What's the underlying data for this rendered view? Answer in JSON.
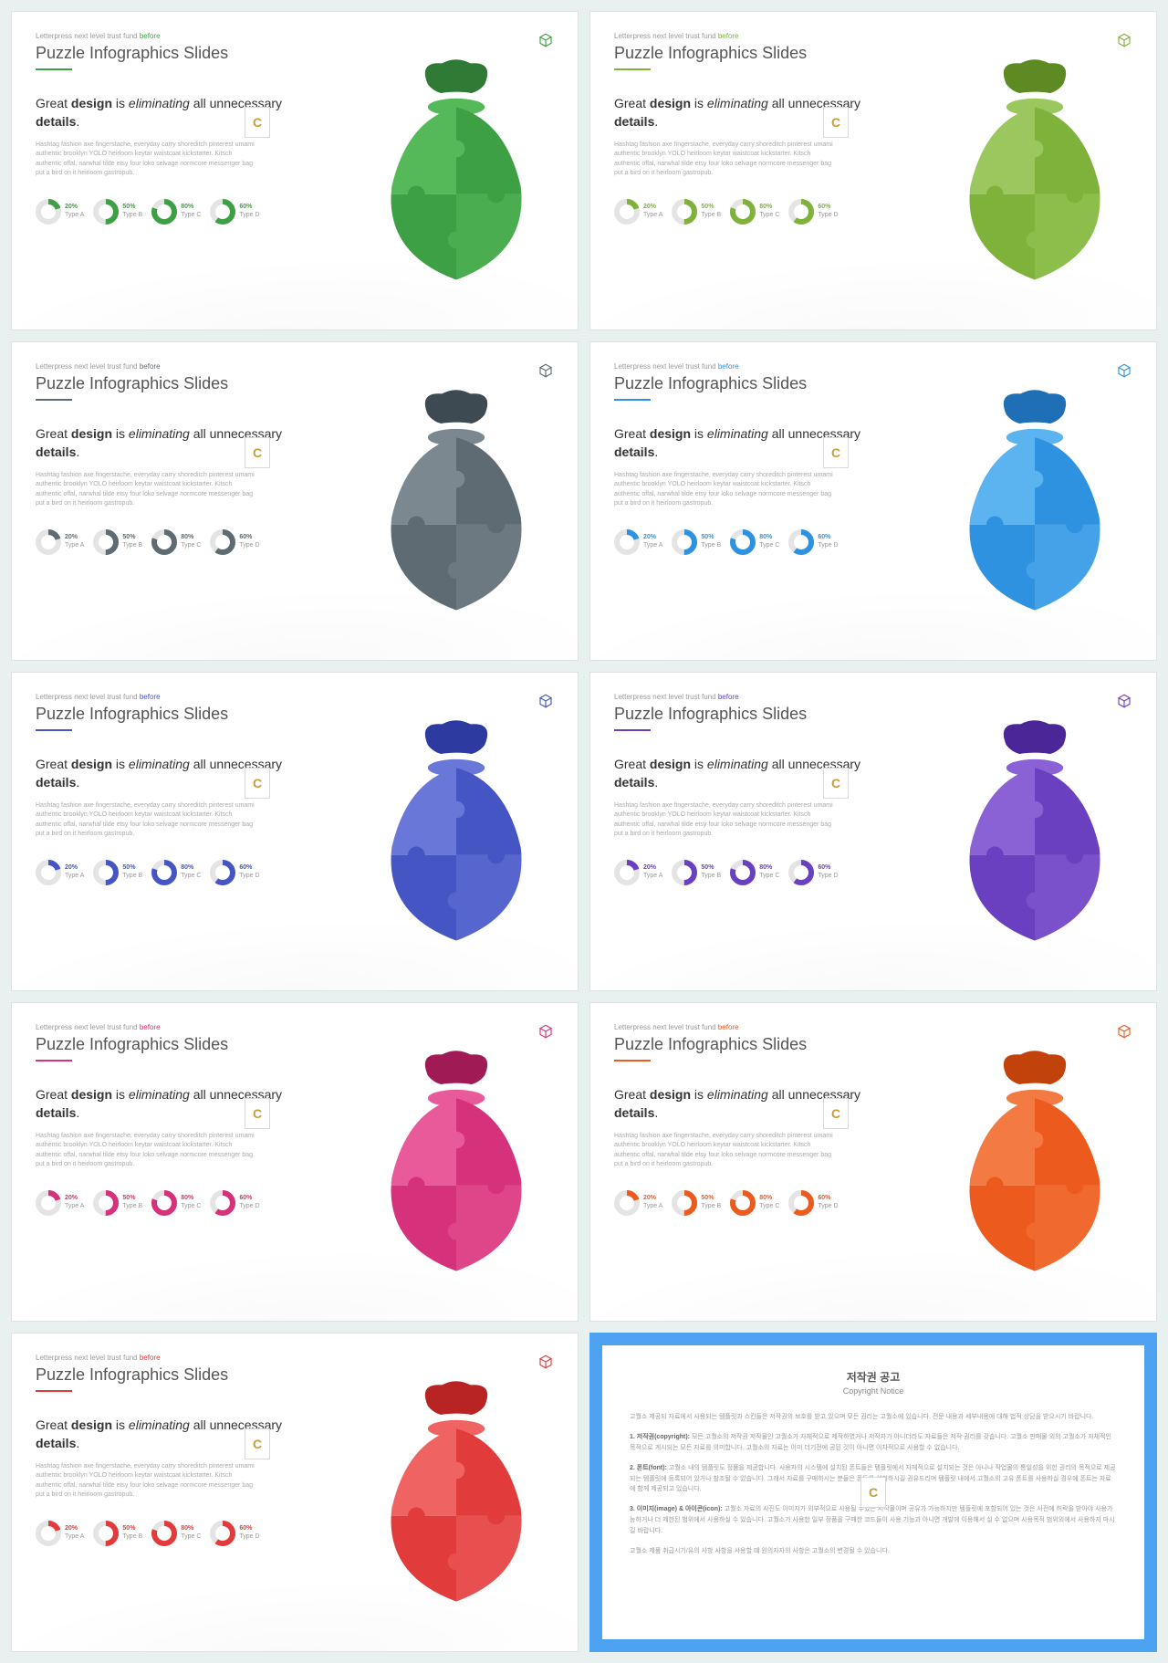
{
  "common": {
    "crumb_pre": "Letterpress next level trust fund ",
    "crumb_accent": "before",
    "title": "Puzzle Infographics Slides",
    "headline_parts": [
      "Great ",
      "design",
      " is ",
      "eliminating",
      " all unnecessary ",
      "details",
      "."
    ],
    "paragraph": "Hashtag fashion axe fingerstache, everyday carry shoreditch pinterest umami authentic brooklyn YOLO heirloom keytar waistcoat kickstarter. Kitsch authentic offal, narwhal tilde etsy four loko selvage normcore messenger bag put a bird on it heirloom gastropub.",
    "donuts": [
      {
        "pct": 20,
        "label": "Type A"
      },
      {
        "pct": 50,
        "label": "Type B"
      },
      {
        "pct": 80,
        "label": "Type C"
      },
      {
        "pct": 60,
        "label": "Type D"
      }
    ],
    "badge_letter": "C",
    "ring_bg": "#e4e4e4"
  },
  "slides": [
    {
      "accent": "#3ea044",
      "bag": {
        "top": "#2f7a34",
        "q1": "#55b95a",
        "q2": "#3ea044",
        "q3": "#3ea044",
        "q4": "#4aad50"
      }
    },
    {
      "accent": "#7fb23a",
      "bag": {
        "top": "#5d8a22",
        "q1": "#9bc85e",
        "q2": "#7fb23a",
        "q3": "#7fb23a",
        "q4": "#8dbe4c"
      }
    },
    {
      "accent": "#5e6b73",
      "bag": {
        "top": "#3e4a52",
        "q1": "#7b8890",
        "q2": "#5e6b73",
        "q3": "#5e6b73",
        "q4": "#6c7981"
      }
    },
    {
      "accent": "#2f92e0",
      "bag": {
        "top": "#1e6fb5",
        "q1": "#5bb3f0",
        "q2": "#2f92e0",
        "q3": "#2f92e0",
        "q4": "#45a2e8"
      }
    },
    {
      "accent": "#4556c4",
      "bag": {
        "top": "#2d3ba0",
        "q1": "#6877d8",
        "q2": "#4556c4",
        "q3": "#4556c4",
        "q4": "#5666ce"
      }
    },
    {
      "accent": "#6a3fc0",
      "bag": {
        "top": "#4a2696",
        "q1": "#8a62d6",
        "q2": "#6a3fc0",
        "q3": "#6a3fc0",
        "q4": "#7a50cb"
      }
    },
    {
      "accent": "#d6317b",
      "bag": {
        "top": "#a01b56",
        "q1": "#e85a9a",
        "q2": "#d6317b",
        "q3": "#d6317b",
        "q4": "#df468a"
      }
    },
    {
      "accent": "#ec5a1e",
      "bag": {
        "top": "#c2420c",
        "q1": "#f47a43",
        "q2": "#ec5a1e",
        "q3": "#ec5a1e",
        "q4": "#f06a30"
      }
    },
    {
      "accent": "#e23b3b",
      "bag": {
        "top": "#b82424",
        "q1": "#ef6363",
        "q2": "#e23b3b",
        "q3": "#e23b3b",
        "q4": "#e84f4f"
      }
    }
  ],
  "notice": {
    "title_ko": "저작권 공고",
    "title_en": "Copyright Notice",
    "p1": "고퀄소 제공되 자료에서 사용되는 템플릿과 스킨들은 저작권의 보호를 받고 있으며 모든 권리는 고퀄소에 있습니다. 전문 내용과 세부내용에 대해 법적 상담을 받으시기 바랍니다.",
    "h1": "1. 저작권(copyright): ",
    "b1": "모든 고퀄소의 저작권 저작물인 고퀄소가 자체적으로 제작하였거나 저작자가 아니더라도 자료들은 저작 권리를 갖습니다. 고퀄소 판매물 외의 고퀄소가 자체적인 목적으로 게시되는 모든 자료를 의미합니다. 고퀄소의 자료는 이미 더기전에 공된 것이 아니면 이차적으로 사용할 수 없습니다.",
    "h2": "2. 폰트(font): ",
    "b2": "고퀄소 내의 템플릿도 정품을 제공합니다. 사용자의 시스템에 설치된 폰트들은 템플릿에서 자체적으로 설치되는 것은 아니나 작업물의 통일성을 위한 권리의 목적으로 제공되는 템플릿에 등록되어 있거나 참조될 수 있습니다. 그래서 자료를 구매하시는 분들은 폰트를 설치하시길 권유드리며 템플릿 내에서 고퀄소의 고유 폰트를 사용하실 경우에 폰트는 자료에 함께 제공되고 있습니다.",
    "h3": "3. 이미지(image) & 아이콘(icon): ",
    "b3": "고퀄소 자료의 사진도 이미지가 외부적으로 사용될 수있는 저작물이며 공유가 가능하지만 템플릿에 포함되어 있는 것은 사전에 허락을 받아야 사용가능하거나 더 제한된 범위에서 사용하실 수 있습니다. 고퀄소가 사용한 일부 정품을 구매한 코드들이 사용 기능과 아니면 개발에 이용해서 실 수 없으며 사용목적 범위외에서 사용하지 마시길 바랍니다.",
    "foot": "고퀄소 제품 취급시기/유의 사항 사항을 사용할 떄 원의자자의 사항은 고퀄소의 변경될 수 있습니다."
  }
}
